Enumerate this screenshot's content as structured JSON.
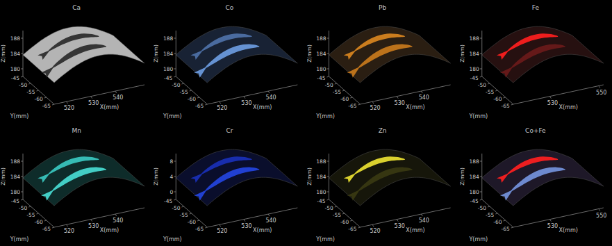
{
  "chart_data": [
    {
      "type": "surface",
      "title": "Ca",
      "xlabel": "X(mm)",
      "ylabel": "Y(mm)",
      "zlabel": "Z(mm)",
      "xlim": [
        515,
        552
      ],
      "ylim": [
        -65,
        -45
      ],
      "zlim": [
        178,
        190
      ],
      "xticks": [
        520,
        530,
        540
      ],
      "yticks": [
        -45,
        -50,
        -55,
        -60,
        -65
      ],
      "zticks": [
        180,
        184,
        188
      ],
      "color": "#b4b4b4",
      "colors": [
        "#2a2a2a",
        "#2a2a2a"
      ]
    },
    {
      "type": "surface",
      "title": "Co",
      "xlabel": "X(mm)",
      "ylabel": "Y(mm)",
      "zlabel": "Z(mm)",
      "xlim": [
        515,
        552
      ],
      "ylim": [
        -65,
        -45
      ],
      "zlim": [
        178,
        190
      ],
      "xticks": [
        520,
        530,
        540
      ],
      "yticks": [
        -45,
        -50,
        -55,
        -60,
        -65
      ],
      "zticks": [
        180,
        184,
        188
      ],
      "color": "#182234",
      "colors": [
        "#4f72a8",
        "#6c9ce0"
      ]
    },
    {
      "type": "surface",
      "title": "Pb",
      "xlabel": "X(mm)",
      "ylabel": "Y(mm)",
      "zlabel": "Z(mm)",
      "xlim": [
        515,
        552
      ],
      "ylim": [
        -65,
        -45
      ],
      "zlim": [
        178,
        190
      ],
      "xticks": [
        520,
        530,
        540
      ],
      "yticks": [
        -45,
        -50,
        -55,
        -60,
        -65
      ],
      "zticks": [
        180,
        184,
        188
      ],
      "color": "#2a1e12",
      "colors": [
        "#d9851f",
        "#c87a1c"
      ]
    },
    {
      "type": "surface",
      "title": "Fe",
      "xlabel": "X(mm)",
      "ylabel": "Y(mm)",
      "zlabel": "Z(mm)",
      "xlim": [
        515,
        552
      ],
      "ylim": [
        -65,
        -45
      ],
      "zlim": [
        178,
        190
      ],
      "xticks": [
        530,
        550
      ],
      "yticks": [
        -45,
        -50,
        -55,
        -60,
        -65
      ],
      "zticks": [
        180,
        184,
        188
      ],
      "color": "#261010",
      "colors": [
        "#ff1e1e",
        "#6a1a1a"
      ]
    },
    {
      "type": "surface",
      "title": "Mn",
      "xlabel": "X(mm)",
      "ylabel": "Y(mm)",
      "zlabel": "Z(mm)",
      "xlim": [
        515,
        552
      ],
      "ylim": [
        -65,
        -45
      ],
      "zlim": [
        178,
        190
      ],
      "xticks": [
        520,
        530,
        540
      ],
      "yticks": [
        -45,
        -50,
        -55,
        -60,
        -65
      ],
      "zticks": [
        180,
        184,
        188
      ],
      "color": "#0e2c2a",
      "colors": [
        "#3ac8c0",
        "#48dcd2"
      ]
    },
    {
      "type": "surface",
      "title": "Cr",
      "xlabel": "X(mm)",
      "ylabel": "Y(mm)",
      "zlabel": "Z(mm)",
      "xlim": [
        515,
        552
      ],
      "ylim": [
        -65,
        -45
      ],
      "zlim": [
        -2,
        10
      ],
      "xticks": [
        520,
        530,
        540
      ],
      "yticks": [
        -45,
        -50,
        -55,
        -60,
        -65
      ],
      "zticks": [
        0,
        4,
        8
      ],
      "color": "#0a0e2c",
      "colors": [
        "#1a30b8",
        "#2444e0"
      ]
    },
    {
      "type": "surface",
      "title": "Zn",
      "xlabel": "X(mm)",
      "ylabel": "Y(mm)",
      "zlabel": "Z(mm)",
      "xlim": [
        515,
        552
      ],
      "ylim": [
        -65,
        -45
      ],
      "zlim": [
        178,
        190
      ],
      "xticks": [
        520,
        530,
        540
      ],
      "yticks": [
        -45,
        -50,
        -55,
        -60,
        -65
      ],
      "zticks": [
        180,
        184,
        188
      ],
      "color": "#16160a",
      "colors": [
        "#ece232",
        "#3a3a12"
      ]
    },
    {
      "type": "surface",
      "title": "Co+Fe",
      "xlabel": "X(mm)",
      "ylabel": "Y(mm)",
      "zlabel": "Z(mm)",
      "xlim": [
        515,
        552
      ],
      "ylim": [
        -65,
        -45
      ],
      "zlim": [
        178,
        190
      ],
      "xticks": [
        530,
        550
      ],
      "yticks": [
        -45,
        -50,
        -55,
        -60,
        -65
      ],
      "zticks": [
        180,
        184,
        188
      ],
      "color": "#1e1828",
      "colors": [
        "#ff2020",
        "#7494dc"
      ]
    }
  ]
}
